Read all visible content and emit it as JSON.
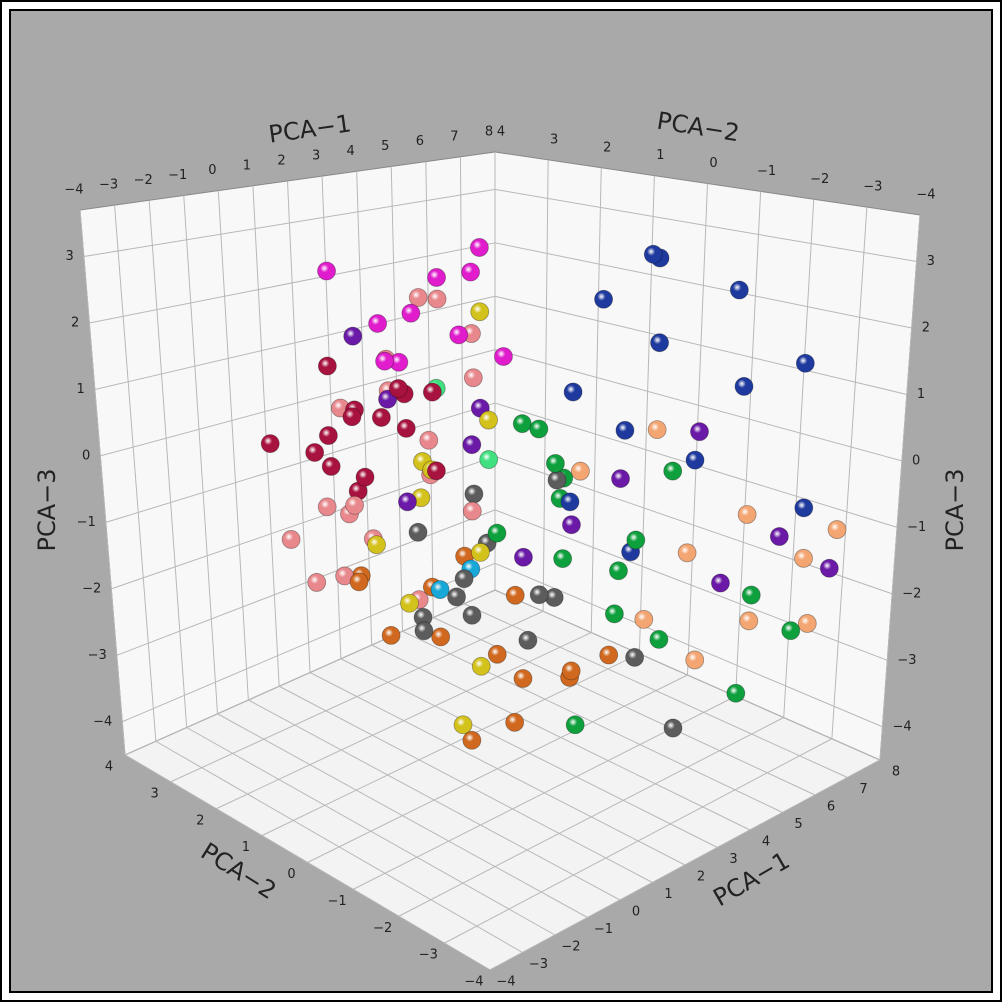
{
  "chart_data": {
    "type": "scatter3d",
    "x_label": "PCA−1",
    "y_label": "PCA−2",
    "z_label": "PCA−3",
    "xlim": [
      -4,
      8
    ],
    "ylim": [
      -4,
      4
    ],
    "zlim": [
      -4.5,
      3.7
    ],
    "xticks": [
      {
        "value": -4,
        "label": "−4"
      },
      {
        "value": -3,
        "label": "−3"
      },
      {
        "value": -2,
        "label": "−2"
      },
      {
        "value": -1,
        "label": "−1"
      },
      0,
      1,
      2,
      3,
      4,
      5,
      6,
      7,
      8
    ],
    "yticks": [
      {
        "value": -4,
        "label": "−4"
      },
      {
        "value": -3,
        "label": "−3"
      },
      {
        "value": -2,
        "label": "−2"
      },
      {
        "value": -1,
        "label": "−1"
      },
      0,
      1,
      2,
      3,
      4
    ],
    "zticks": [
      {
        "value": -4,
        "label": "−4"
      },
      {
        "value": -3,
        "label": "−3"
      },
      {
        "value": -2,
        "label": "−2"
      },
      {
        "value": -1,
        "label": "−1"
      },
      0,
      1,
      2,
      3
    ],
    "grid": true,
    "series": [
      {
        "color": "#a8123e",
        "x": [
          -0.5,
          0.3,
          -1.2,
          0.8,
          0.0,
          -0.8,
          1.2,
          -0.3,
          0.5,
          -1.5,
          0.2,
          1.0,
          -0.6,
          0.6,
          -2.5
        ],
        "y": [
          1.2,
          0.8,
          1.5,
          1.0,
          2.0,
          0.4,
          1.3,
          1.8,
          0.2,
          1.0,
          1.6,
          0.6,
          0.9,
          1.9,
          1.5
        ],
        "z": [
          0.8,
          1.2,
          0.3,
          0.5,
          -0.2,
          1.0,
          0.9,
          1.4,
          0.1,
          0.7,
          -0.5,
          1.1,
          0.0,
          0.6,
          0.6
        ]
      },
      {
        "color": "#e8888c",
        "x": [
          0.5,
          1.5,
          2.5,
          3.5,
          0.0,
          1.0,
          2.0,
          3.0,
          -0.5,
          1.8,
          2.8,
          0.8,
          4.0,
          1.2,
          2.2,
          -1.0,
          3.2,
          0.3
        ],
        "y": [
          2.0,
          1.0,
          2.5,
          1.5,
          1.8,
          2.8,
          0.5,
          2.2,
          1.2,
          3.0,
          1.0,
          0.8,
          2.5,
          2.0,
          1.5,
          2.2,
          3.0,
          2.6
        ],
        "z": [
          -1.0,
          -0.3,
          0.5,
          1.5,
          -1.8,
          -1.2,
          -0.8,
          2.0,
          -0.5,
          0.2,
          1.0,
          -2.0,
          1.8,
          -1.5,
          0.0,
          -1.2,
          0.8,
          -2.2
        ]
      },
      {
        "color": "#e01ccc",
        "x": [
          1.0,
          2.0,
          1.5,
          0.5,
          2.5,
          1.2,
          3.0,
          0.8,
          1.8,
          2.2
        ],
        "y": [
          1.0,
          0.5,
          2.0,
          1.2,
          1.5,
          0.2,
          1.0,
          2.5,
          1.8,
          0.0
        ],
        "z": [
          2.2,
          2.8,
          1.8,
          1.5,
          2.5,
          2.0,
          3.0,
          2.6,
          1.2,
          1.6
        ]
      },
      {
        "color": "#1e3a9e",
        "x": [
          5.0,
          6.0,
          4.5,
          3.5,
          5.5,
          4.0,
          6.5,
          3.0,
          5.2,
          4.8,
          7.0,
          3.8,
          5.8
        ],
        "y": [
          -1.0,
          -2.0,
          -1.5,
          -0.5,
          -2.5,
          -1.2,
          -3.0,
          -0.8,
          -1.8,
          -0.2,
          -2.8,
          -1.5,
          -0.6
        ],
        "z": [
          3.0,
          2.5,
          1.8,
          1.0,
          1.2,
          0.5,
          1.5,
          -0.5,
          0.0,
          2.2,
          -0.8,
          -1.2,
          2.8
        ]
      },
      {
        "color": "#6a1aa6",
        "x": [
          2.0,
          3.5,
          1.0,
          5.0,
          2.8,
          6.0,
          4.2,
          1.5,
          3.0,
          5.5,
          0.5,
          6.8
        ],
        "y": [
          0.5,
          -0.5,
          1.5,
          -2.0,
          0.0,
          -3.0,
          -1.0,
          2.5,
          1.0,
          -2.2,
          0.8,
          -3.5
        ],
        "z": [
          0.2,
          -1.0,
          0.8,
          0.5,
          -1.5,
          -1.0,
          -0.3,
          1.5,
          0.5,
          -1.8,
          -0.5,
          -1.5
        ]
      },
      {
        "color": "#0fa03e",
        "x": [
          3.0,
          4.0,
          2.5,
          3.5,
          5.0,
          2.0,
          4.5,
          3.2,
          6.0,
          2.8,
          5.5,
          3.8,
          4.2,
          6.5,
          2.2,
          5.2
        ],
        "y": [
          -0.5,
          0.0,
          -1.0,
          0.5,
          -1.5,
          0.0,
          -0.8,
          -2.0,
          -2.5,
          -0.3,
          -1.0,
          -1.2,
          0.2,
          -3.0,
          -1.5,
          -2.8
        ],
        "z": [
          0.0,
          -0.5,
          -1.2,
          0.3,
          -0.2,
          -1.0,
          -1.8,
          -0.8,
          -2.0,
          0.5,
          -3.0,
          -2.2,
          -0.9,
          -2.5,
          -3.4,
          -3.2
        ]
      },
      {
        "color": "#d0691f",
        "x": [
          1.0,
          2.0,
          1.5,
          2.5,
          0.5,
          3.0,
          1.8,
          2.8,
          0.0,
          2.2,
          3.5,
          1.2,
          3.2,
          0.8
        ],
        "y": [
          0.5,
          0.0,
          1.0,
          -0.2,
          1.2,
          0.3,
          -0.5,
          -1.0,
          1.5,
          0.8,
          -0.5,
          0.0,
          -1.5,
          2.0
        ],
        "z": [
          -2.5,
          -2.8,
          -2.0,
          -3.2,
          -2.6,
          -2.2,
          -3.6,
          -2.9,
          -1.8,
          -1.6,
          -3.3,
          -3.9,
          -2.6,
          -2.0
        ]
      },
      {
        "color": "#5c5c5c",
        "x": [
          1.0,
          1.5,
          0.5,
          2.0,
          1.2,
          2.5,
          0.8,
          3.0,
          1.8,
          4.0,
          0.2,
          2.2,
          3.5,
          4.5
        ],
        "y": [
          0.0,
          0.5,
          -0.5,
          0.2,
          1.0,
          -0.3,
          0.8,
          -0.5,
          -1.0,
          -1.5,
          0.3,
          0.6,
          -0.2,
          -2.0
        ],
        "z": [
          -1.5,
          -2.0,
          -1.8,
          -1.2,
          -2.4,
          -2.6,
          -1.0,
          -2.0,
          -1.6,
          -2.8,
          -2.2,
          -0.6,
          -0.4,
          -3.8
        ]
      },
      {
        "color": "#d4c21c",
        "x": [
          1.2,
          0.8,
          2.0,
          1.5,
          0.5,
          2.5,
          1.0,
          3.0,
          1.8,
          0.2
        ],
        "y": [
          1.0,
          0.5,
          1.5,
          0.0,
          0.8,
          0.5,
          1.8,
          1.0,
          0.2,
          -0.5
        ],
        "z": [
          -0.6,
          0.0,
          -0.3,
          -1.2,
          -2.0,
          0.5,
          -1.5,
          2.0,
          -3.0,
          -3.3
        ]
      },
      {
        "color": "#f3a572",
        "x": [
          4.0,
          5.0,
          3.5,
          6.0,
          4.5,
          5.5,
          3.0,
          6.5,
          4.8,
          7.0
        ],
        "y": [
          -2.5,
          -3.0,
          -2.0,
          -3.5,
          -1.5,
          -2.8,
          -1.0,
          -3.8,
          -2.2,
          -3.0
        ],
        "z": [
          -1.0,
          -0.5,
          -2.0,
          -1.2,
          0.5,
          -2.2,
          0.0,
          -0.8,
          -2.8,
          -2.5
        ]
      },
      {
        "color": "#18a8d8",
        "x": [
          1.0,
          1.5
        ],
        "y": [
          0.5,
          0.2
        ],
        "z": [
          -1.8,
          -1.5
        ]
      },
      {
        "color": "#40e080",
        "x": [
          2.5,
          2.0
        ],
        "y": [
          0.5,
          1.2
        ],
        "z": [
          -0.1,
          0.9
        ]
      }
    ]
  }
}
